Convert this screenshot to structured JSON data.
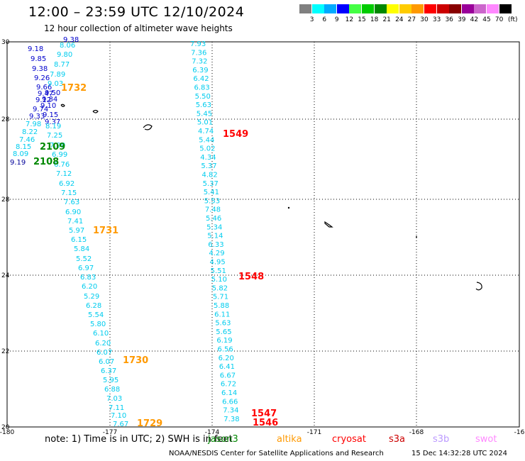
{
  "header": {
    "title": "12:00 – 23:59 UTC 12/10/2024",
    "subtitle": "12 hour collection of altimeter wave heights"
  },
  "colorbar": {
    "colors": [
      "#808080",
      "#00ffff",
      "#00aaff",
      "#0000ff",
      "#44ff44",
      "#00cc00",
      "#008800",
      "#ffff00",
      "#ffcc00",
      "#ff9900",
      "#ff0000",
      "#cc0000",
      "#880000",
      "#990099",
      "#cc66cc",
      "#ff88ff",
      "#000000"
    ],
    "labels": [
      "3",
      "6",
      "9",
      "12",
      "15",
      "18",
      "21",
      "24",
      "27",
      "30",
      "33",
      "36",
      "39",
      "42",
      "45",
      "70"
    ],
    "unit": "(ft)"
  },
  "map": {
    "lon_labels": [
      "-180",
      "-177",
      "-174",
      "-171",
      "-168",
      "-16"
    ],
    "lat_labels": [
      "30",
      "28",
      "26",
      "24",
      "22",
      "20"
    ],
    "lat_display": [
      "30",
      "28",
      "28",
      "24",
      "22",
      "20"
    ]
  },
  "tracks": {
    "blue_group": {
      "color": "#0000cc",
      "values": [
        "9.38",
        "9.18",
        "9.85",
        "9.38",
        "9.26",
        "9.66",
        "9.47",
        "9.12",
        "9.74",
        "9.33"
      ],
      "cyan_values": [
        "8.06",
        "9.80",
        "8.77",
        "7.89",
        "9.03",
        "9.50",
        "9.84",
        "9.10",
        "9.15",
        "9.37"
      ]
    },
    "left_cyan": {
      "values": [
        "7.98",
        "8.22",
        "7.46",
        "8.15",
        "8.09",
        "8.19",
        "7.25",
        "7.99",
        "6.99",
        "6.76",
        "7.12",
        "6.92",
        "7.15",
        "7.63",
        "6.90",
        "7.41",
        "5.97",
        "6.15",
        "5.84",
        "5.52",
        "6.97",
        "6.83",
        "6.20",
        "5.29",
        "6.28",
        "5.54",
        "5.80",
        "6.10",
        "6.20",
        "6.07",
        "6.07",
        "6.37",
        "5.95",
        "6.88",
        "7.03",
        "7.11",
        "7.10",
        "7.67"
      ],
      "blue_single": "9.19"
    },
    "right_cyan": {
      "values": [
        "7.93",
        "7.36",
        "7.32",
        "6.39",
        "6.42",
        "6.83",
        "5.50",
        "5.63",
        "5.45",
        "5.01",
        "4.74",
        "5.44",
        "5.02",
        "4.34",
        "5.37",
        "4.82",
        "5.37",
        "5.41",
        "5.53",
        "7.48",
        "5.46",
        "5.34",
        "5.14",
        "6.33",
        "4.29",
        "4.95",
        "5.51",
        "5.10",
        "5.82",
        "5.71",
        "5.88",
        "6.11",
        "5.63",
        "5.65",
        "6.19",
        "6.56",
        "6.20",
        "6.41",
        "6.67",
        "6.72",
        "6.14",
        "6.66",
        "7.34",
        "7.38"
      ]
    },
    "time_labels": [
      {
        "text": "1732",
        "color": "#ff9900"
      },
      {
        "text": "2109",
        "color": "#008800"
      },
      {
        "text": "2108",
        "color": "#008800"
      },
      {
        "text": "1731",
        "color": "#ff9900"
      },
      {
        "text": "1730",
        "color": "#ff9900"
      },
      {
        "text": "1729",
        "color": "#ff9900"
      },
      {
        "text": "1549",
        "color": "#ff0000"
      },
      {
        "text": "1548",
        "color": "#ff0000"
      },
      {
        "text": "1547",
        "color": "#ff0000"
      },
      {
        "text": "1546",
        "color": "#ff0000"
      }
    ]
  },
  "footer": {
    "note_prefix": "note: 1) Time is in UTC; 2) SWH is in feet",
    "sat_jason3": "jason3",
    "sat_altika": "altika",
    "sat_cryosat": "cryosat",
    "sat_s3a": "s3a",
    "sat_s3b": "s3b",
    "sat_swot": "swot",
    "colors": {
      "jason3": "#008800",
      "altika": "#ff9900",
      "cryosat": "#ff0000",
      "s3a": "#cc0000",
      "s3b": "#bb99ff",
      "swot": "#ff88ff"
    },
    "credit": "NOAA/NESDIS Center for Satellite Applications and Research",
    "timestamp": "15 Dec 14:32:28 UTC 2024"
  }
}
